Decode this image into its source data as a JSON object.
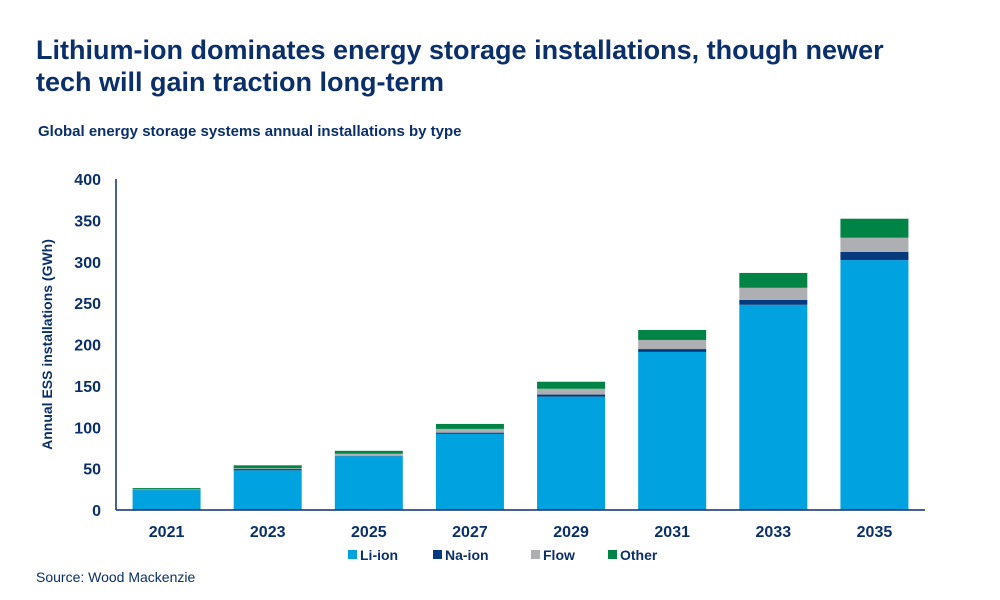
{
  "chart_data": {
    "type": "bar",
    "stacked": true,
    "title": "Lithium-ion dominates energy storage installations, though newer tech will gain traction long-term",
    "subtitle": "Global energy storage systems annual installations by type",
    "xlabel": "",
    "ylabel": "Annual ESS installations (GWh)",
    "ylim": [
      0,
      400
    ],
    "yticks": [
      0,
      50,
      100,
      150,
      200,
      250,
      300,
      350,
      400
    ],
    "grid": false,
    "legend_position": "bottom",
    "categories": [
      "2021",
      "2023",
      "2025",
      "2027",
      "2029",
      "2031",
      "2033",
      "2035"
    ],
    "series": [
      {
        "name": "Li-ion",
        "color": "#00a3e0",
        "values": [
          24,
          48,
          65,
          92,
          137,
          191,
          248,
          302
        ]
      },
      {
        "name": "Na-ion",
        "color": "#063a7e",
        "values": [
          0.5,
          1.5,
          0.5,
          1.5,
          2.5,
          3.5,
          6,
          10
        ]
      },
      {
        "name": "Flow",
        "color": "#aeafb3",
        "values": [
          0.5,
          1,
          2.5,
          4.5,
          7,
          11,
          14.5,
          17
        ]
      },
      {
        "name": "Other",
        "color": "#008445",
        "values": [
          1.5,
          3.5,
          3.5,
          6,
          8.5,
          12,
          18,
          23
        ]
      }
    ],
    "source": "Source: Wood Mackenzie"
  }
}
